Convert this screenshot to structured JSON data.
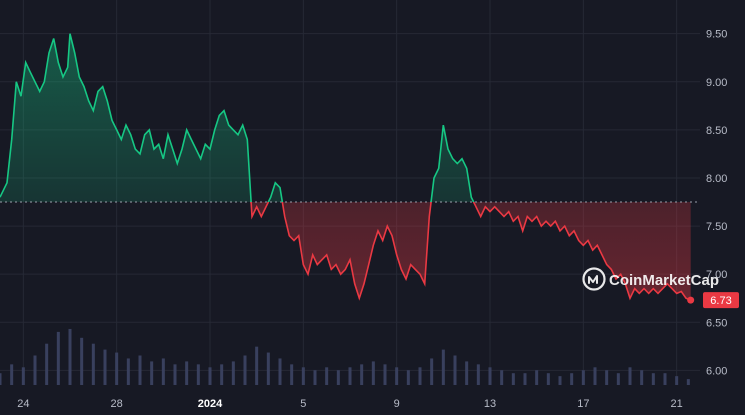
{
  "watermark": {
    "text": "CoinMarketCap",
    "icon": "coinmarketcap-logo-icon"
  },
  "current_price_label": "6.73",
  "colors": {
    "background": "#171924",
    "grid": "#262935",
    "up": "#16c784",
    "down": "#ea3943",
    "volume": "#39405e",
    "baseline": "#9aa0ab"
  },
  "chart_data": {
    "type": "area",
    "title": "",
    "baseline_value": 7.75,
    "y_ticks": [
      "9.50",
      "9.00",
      "8.50",
      "8.00",
      "7.50",
      "7.00",
      "6.50",
      "6.00"
    ],
    "x_ticks": [
      {
        "label": "24",
        "day": 24
      },
      {
        "label": "28",
        "day": 28
      },
      {
        "label": "2024",
        "day": 32
      },
      {
        "label": "5",
        "day": 36
      },
      {
        "label": "9",
        "day": 40
      },
      {
        "label": "13",
        "day": 44
      },
      {
        "label": "17",
        "day": 48
      },
      {
        "label": "21",
        "day": 52
      }
    ],
    "ylim": [
      5.9,
      9.85
    ],
    "xlim": [
      23.0,
      53.0
    ],
    "grid": true,
    "price_series": {
      "name": "",
      "points": [
        [
          23.0,
          7.8
        ],
        [
          23.3,
          7.95
        ],
        [
          23.5,
          8.4
        ],
        [
          23.7,
          9.0
        ],
        [
          23.9,
          8.85
        ],
        [
          24.1,
          9.2
        ],
        [
          24.3,
          9.1
        ],
        [
          24.5,
          9.0
        ],
        [
          24.7,
          8.9
        ],
        [
          24.9,
          9.0
        ],
        [
          25.1,
          9.3
        ],
        [
          25.3,
          9.45
        ],
        [
          25.5,
          9.2
        ],
        [
          25.7,
          9.05
        ],
        [
          25.9,
          9.15
        ],
        [
          26.0,
          9.5
        ],
        [
          26.2,
          9.3
        ],
        [
          26.4,
          9.05
        ],
        [
          26.6,
          8.95
        ],
        [
          26.8,
          8.8
        ],
        [
          27.0,
          8.7
        ],
        [
          27.2,
          8.9
        ],
        [
          27.4,
          8.95
        ],
        [
          27.6,
          8.8
        ],
        [
          27.8,
          8.6
        ],
        [
          28.0,
          8.5
        ],
        [
          28.2,
          8.4
        ],
        [
          28.4,
          8.55
        ],
        [
          28.6,
          8.45
        ],
        [
          28.8,
          8.3
        ],
        [
          29.0,
          8.25
        ],
        [
          29.2,
          8.45
        ],
        [
          29.4,
          8.5
        ],
        [
          29.6,
          8.3
        ],
        [
          29.8,
          8.35
        ],
        [
          30.0,
          8.2
        ],
        [
          30.2,
          8.45
        ],
        [
          30.4,
          8.3
        ],
        [
          30.6,
          8.15
        ],
        [
          30.8,
          8.3
        ],
        [
          31.0,
          8.5
        ],
        [
          31.2,
          8.4
        ],
        [
          31.4,
          8.3
        ],
        [
          31.6,
          8.2
        ],
        [
          31.8,
          8.35
        ],
        [
          32.0,
          8.3
        ],
        [
          32.2,
          8.5
        ],
        [
          32.4,
          8.65
        ],
        [
          32.6,
          8.7
        ],
        [
          32.8,
          8.55
        ],
        [
          33.0,
          8.5
        ],
        [
          33.2,
          8.45
        ],
        [
          33.4,
          8.55
        ],
        [
          33.6,
          8.4
        ],
        [
          33.8,
          7.6
        ],
        [
          34.0,
          7.7
        ],
        [
          34.2,
          7.6
        ],
        [
          34.4,
          7.7
        ],
        [
          34.6,
          7.8
        ],
        [
          34.8,
          7.95
        ],
        [
          35.0,
          7.9
        ],
        [
          35.2,
          7.6
        ],
        [
          35.4,
          7.4
        ],
        [
          35.6,
          7.35
        ],
        [
          35.8,
          7.4
        ],
        [
          36.0,
          7.1
        ],
        [
          36.2,
          7.0
        ],
        [
          36.4,
          7.2
        ],
        [
          36.6,
          7.1
        ],
        [
          36.8,
          7.15
        ],
        [
          37.0,
          7.2
        ],
        [
          37.2,
          7.05
        ],
        [
          37.4,
          7.1
        ],
        [
          37.6,
          7.0
        ],
        [
          37.8,
          7.05
        ],
        [
          38.0,
          7.15
        ],
        [
          38.2,
          6.9
        ],
        [
          38.4,
          6.75
        ],
        [
          38.6,
          6.9
        ],
        [
          38.8,
          7.1
        ],
        [
          39.0,
          7.3
        ],
        [
          39.2,
          7.45
        ],
        [
          39.4,
          7.35
        ],
        [
          39.6,
          7.5
        ],
        [
          39.8,
          7.4
        ],
        [
          40.0,
          7.2
        ],
        [
          40.2,
          7.05
        ],
        [
          40.4,
          6.95
        ],
        [
          40.6,
          7.1
        ],
        [
          40.8,
          7.05
        ],
        [
          41.0,
          7.0
        ],
        [
          41.2,
          6.9
        ],
        [
          41.4,
          7.6
        ],
        [
          41.6,
          8.0
        ],
        [
          41.8,
          8.1
        ],
        [
          42.0,
          8.55
        ],
        [
          42.2,
          8.3
        ],
        [
          42.4,
          8.2
        ],
        [
          42.6,
          8.15
        ],
        [
          42.8,
          8.2
        ],
        [
          43.0,
          8.1
        ],
        [
          43.2,
          7.8
        ],
        [
          43.4,
          7.7
        ],
        [
          43.6,
          7.6
        ],
        [
          43.8,
          7.7
        ],
        [
          44.0,
          7.65
        ],
        [
          44.2,
          7.7
        ],
        [
          44.4,
          7.65
        ],
        [
          44.6,
          7.6
        ],
        [
          44.8,
          7.65
        ],
        [
          45.0,
          7.55
        ],
        [
          45.2,
          7.6
        ],
        [
          45.4,
          7.45
        ],
        [
          45.6,
          7.6
        ],
        [
          45.8,
          7.55
        ],
        [
          46.0,
          7.6
        ],
        [
          46.2,
          7.5
        ],
        [
          46.4,
          7.55
        ],
        [
          46.6,
          7.5
        ],
        [
          46.8,
          7.55
        ],
        [
          47.0,
          7.45
        ],
        [
          47.2,
          7.5
        ],
        [
          47.4,
          7.4
        ],
        [
          47.6,
          7.45
        ],
        [
          47.8,
          7.35
        ],
        [
          48.0,
          7.3
        ],
        [
          48.2,
          7.35
        ],
        [
          48.4,
          7.25
        ],
        [
          48.6,
          7.3
        ],
        [
          48.8,
          7.2
        ],
        [
          49.0,
          7.1
        ],
        [
          49.2,
          7.05
        ],
        [
          49.4,
          6.95
        ],
        [
          49.6,
          7.0
        ],
        [
          49.8,
          6.9
        ],
        [
          50.0,
          6.75
        ],
        [
          50.2,
          6.85
        ],
        [
          50.4,
          6.8
        ],
        [
          50.6,
          6.85
        ],
        [
          50.8,
          6.8
        ],
        [
          51.0,
          6.85
        ],
        [
          51.2,
          6.8
        ],
        [
          51.4,
          6.85
        ],
        [
          51.6,
          6.9
        ],
        [
          51.8,
          6.85
        ],
        [
          52.0,
          6.8
        ],
        [
          52.2,
          6.82
        ],
        [
          52.4,
          6.75
        ],
        [
          52.6,
          6.73
        ]
      ]
    },
    "volume_series": {
      "name": "",
      "points": [
        [
          23.0,
          0.2
        ],
        [
          23.5,
          0.35
        ],
        [
          24.0,
          0.3
        ],
        [
          24.5,
          0.5
        ],
        [
          25.0,
          0.7
        ],
        [
          25.5,
          0.9
        ],
        [
          26.0,
          0.95
        ],
        [
          26.5,
          0.8
        ],
        [
          27.0,
          0.7
        ],
        [
          27.5,
          0.6
        ],
        [
          28.0,
          0.55
        ],
        [
          28.5,
          0.45
        ],
        [
          29.0,
          0.5
        ],
        [
          29.5,
          0.4
        ],
        [
          30.0,
          0.45
        ],
        [
          30.5,
          0.35
        ],
        [
          31.0,
          0.4
        ],
        [
          31.5,
          0.35
        ],
        [
          32.0,
          0.3
        ],
        [
          32.5,
          0.35
        ],
        [
          33.0,
          0.4
        ],
        [
          33.5,
          0.5
        ],
        [
          34.0,
          0.65
        ],
        [
          34.5,
          0.55
        ],
        [
          35.0,
          0.45
        ],
        [
          35.5,
          0.35
        ],
        [
          36.0,
          0.3
        ],
        [
          36.5,
          0.25
        ],
        [
          37.0,
          0.3
        ],
        [
          37.5,
          0.25
        ],
        [
          38.0,
          0.3
        ],
        [
          38.5,
          0.35
        ],
        [
          39.0,
          0.4
        ],
        [
          39.5,
          0.35
        ],
        [
          40.0,
          0.3
        ],
        [
          40.5,
          0.25
        ],
        [
          41.0,
          0.3
        ],
        [
          41.5,
          0.45
        ],
        [
          42.0,
          0.6
        ],
        [
          42.5,
          0.5
        ],
        [
          43.0,
          0.4
        ],
        [
          43.5,
          0.35
        ],
        [
          44.0,
          0.3
        ],
        [
          44.5,
          0.25
        ],
        [
          45.0,
          0.2
        ],
        [
          45.5,
          0.2
        ],
        [
          46.0,
          0.25
        ],
        [
          46.5,
          0.2
        ],
        [
          47.0,
          0.15
        ],
        [
          47.5,
          0.2
        ],
        [
          48.0,
          0.25
        ],
        [
          48.5,
          0.3
        ],
        [
          49.0,
          0.25
        ],
        [
          49.5,
          0.2
        ],
        [
          50.0,
          0.3
        ],
        [
          50.5,
          0.25
        ],
        [
          51.0,
          0.2
        ],
        [
          51.5,
          0.2
        ],
        [
          52.0,
          0.15
        ],
        [
          52.5,
          0.1
        ]
      ]
    }
  }
}
